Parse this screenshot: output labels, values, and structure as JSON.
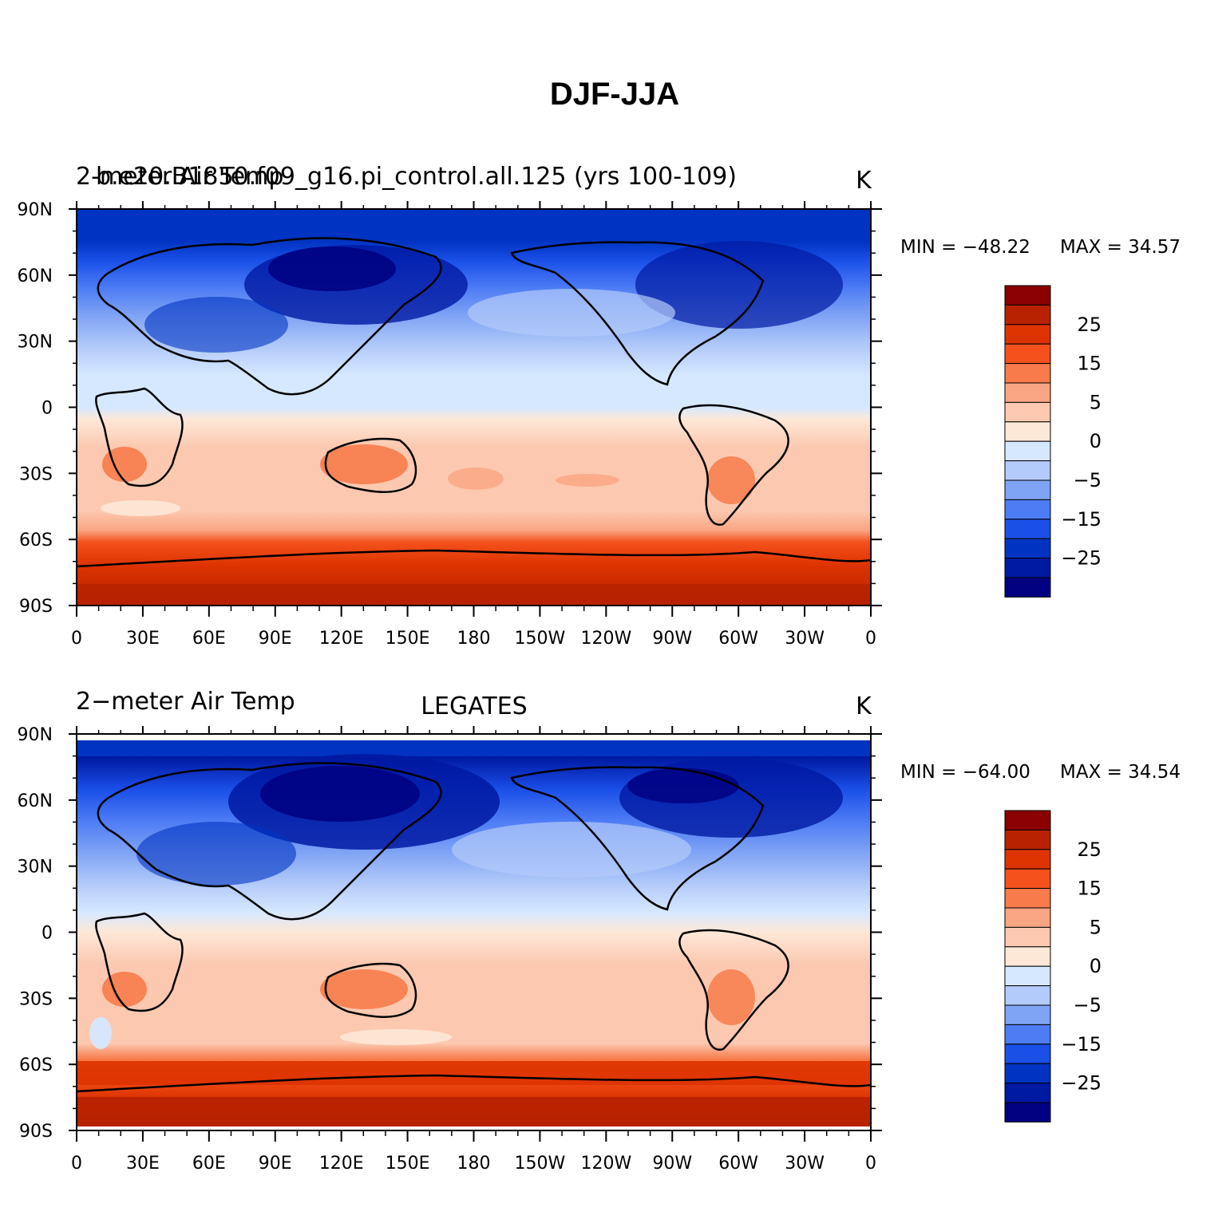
{
  "figure_title": "DJF-JJA",
  "colors": {
    "levels": [
      "#000080",
      "#0019a2",
      "#0033c1",
      "#1a4fe8",
      "#4d7cf5",
      "#80a4f5",
      "#b3cbfa",
      "#d6e8ff",
      "#fde8d8",
      "#fcc9b0",
      "#f9a582",
      "#f77b4b",
      "#f4511d",
      "#dd3300",
      "#b82200",
      "#8b0000"
    ],
    "land_outline": "#000000"
  },
  "panels": [
    {
      "left_label": "2-meter Air Temp",
      "left_label_overlay": "b.e20.B1850.f09_g16.pi_control.all.125 (yrs 100-109)",
      "center_label": "",
      "right_label": "K",
      "min_text": "MIN = −48.22",
      "max_text": "MAX =   34.57"
    },
    {
      "left_label": "2−meter Air Temp",
      "left_label_overlay": "",
      "center_label": "LEGATES",
      "right_label": "K",
      "min_text": "MIN = −64.00",
      "max_text": "MAX =   34.54"
    }
  ],
  "lat_labels": [
    "90N",
    "60N",
    "30N",
    "0",
    "30S",
    "60S",
    "90S"
  ],
  "lon_labels": [
    "0",
    "30E",
    "60E",
    "90E",
    "120E",
    "150E",
    "180",
    "150W",
    "120W",
    "90W",
    "60W",
    "30W",
    "0"
  ],
  "colorbar_labels": [
    "25",
    "15",
    "5",
    "0",
    "−5",
    "−15",
    "−25"
  ],
  "chart_data": [
    {
      "type": "heatmap",
      "title": "DJF-JJA",
      "left_label": "2-meter Air Temp",
      "center_label": "",
      "units": "K",
      "min": -48.22,
      "max": 34.57,
      "x_range": [
        0,
        360
      ],
      "y_range": [
        -90,
        90
      ],
      "levels": [
        -30,
        -25,
        -20,
        -15,
        -10,
        -5,
        0,
        2.5,
        5,
        10,
        15,
        20,
        25,
        30
      ]
    },
    {
      "type": "heatmap",
      "title": "DJF-JJA",
      "left_label": "2-meter Air Temp",
      "center_label": "LEGATES",
      "units": "K",
      "min": -64.0,
      "max": 34.54,
      "x_range": [
        0,
        360
      ],
      "y_range": [
        -90,
        90
      ],
      "levels": [
        -30,
        -25,
        -20,
        -15,
        -10,
        -5,
        0,
        2.5,
        5,
        10,
        15,
        20,
        25,
        30
      ]
    }
  ]
}
